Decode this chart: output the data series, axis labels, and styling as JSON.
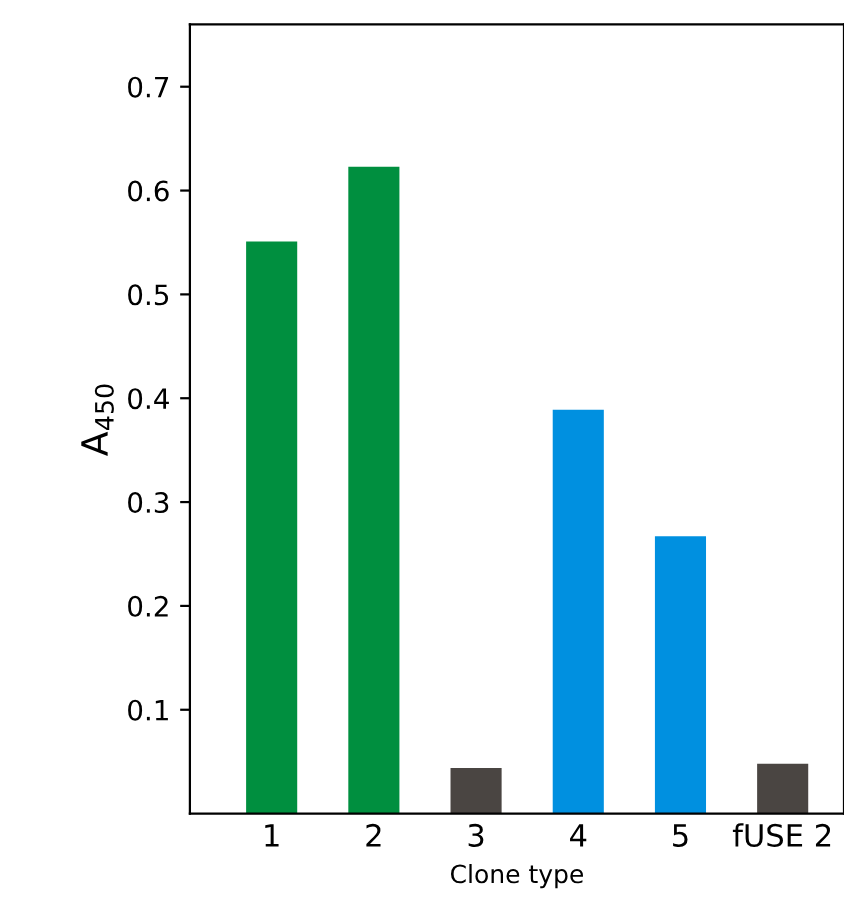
{
  "chart_data": {
    "type": "bar",
    "xlabel": "Clone type",
    "ylabel": "A$_{450}$",
    "categories": [
      "1",
      "2",
      "3",
      "4",
      "5",
      "fUSE 2"
    ],
    "values": [
      0.551,
      0.623,
      0.044,
      0.389,
      0.267,
      0.048
    ],
    "colors": [
      "#008f3f",
      "#008f3f",
      "#4a4542",
      "#0090e0",
      "#0090e0",
      "#4a4542"
    ],
    "ylim": [
      0,
      0.76
    ],
    "yticks": [
      0.1,
      0.2,
      0.3,
      0.4,
      0.5,
      0.6,
      0.7
    ],
    "grid": false,
    "legend": false
  }
}
